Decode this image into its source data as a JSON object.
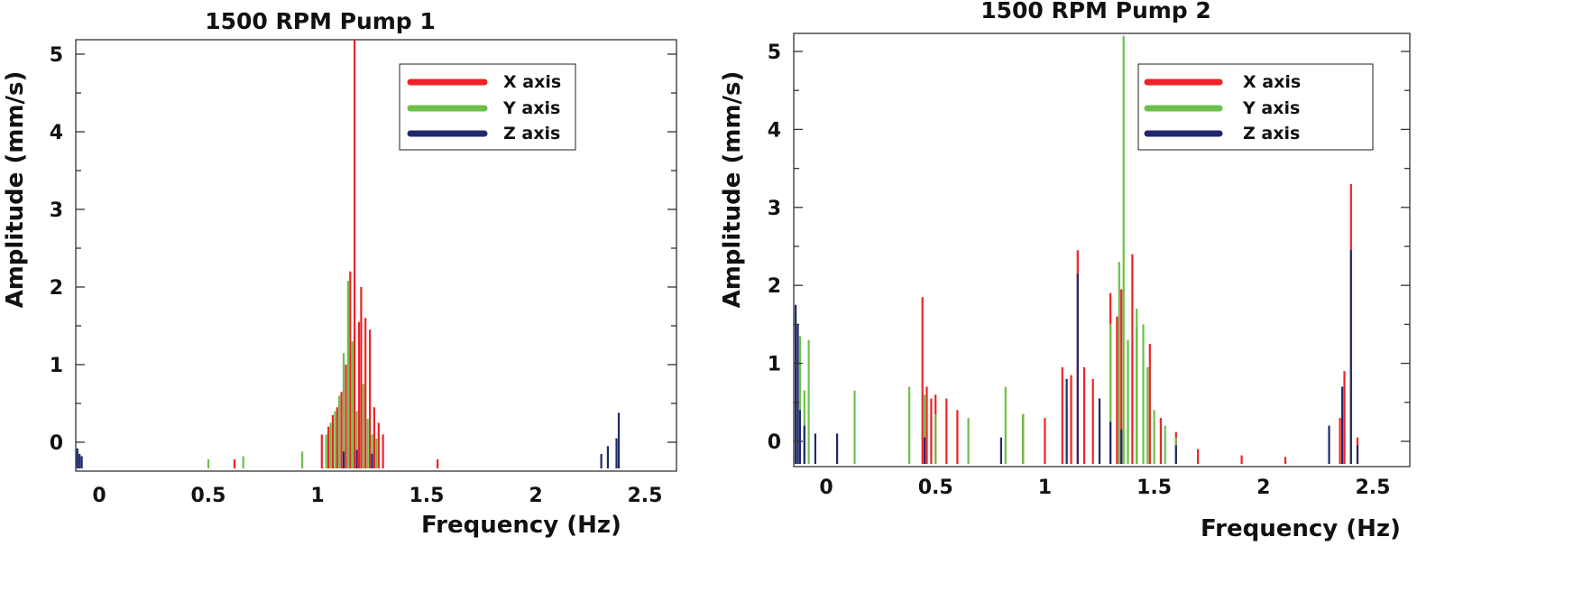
{
  "colors": {
    "x": "#ee2227",
    "y": "#6cc04a",
    "z": "#1f2a6e"
  },
  "chart_data": [
    {
      "type": "bar",
      "title": "1500 RPM Pump 1",
      "xlabel": "Frequency (Hz)",
      "ylabel": "Amplitude (mm/s)",
      "xlim": [
        -0.12,
        2.62
      ],
      "ylim": [
        -0.28,
        5.2
      ],
      "xticks": [
        0,
        0.5,
        1,
        1.5,
        2,
        2.5
      ],
      "xtick_labels": [
        "0",
        "0.5",
        "1",
        "1.5",
        "2",
        "2.5"
      ],
      "yticks": [
        0,
        1,
        2,
        3,
        4,
        5
      ],
      "ytick_labels": [
        "0",
        "1",
        "2",
        "3",
        "4",
        "5"
      ],
      "legend": [
        "X axis",
        "Y axis",
        "Z axis"
      ],
      "legend_position": "top-right",
      "series": [
        {
          "name": "X axis",
          "points": [
            [
              1.02,
              0.1
            ],
            [
              1.05,
              0.2
            ],
            [
              1.07,
              0.35
            ],
            [
              1.09,
              0.45
            ],
            [
              1.11,
              0.65
            ],
            [
              1.13,
              1.0
            ],
            [
              1.15,
              2.2
            ],
            [
              1.17,
              5.2
            ],
            [
              1.19,
              1.55
            ],
            [
              1.2,
              2.0
            ],
            [
              1.22,
              1.6
            ],
            [
              1.24,
              1.45
            ],
            [
              1.26,
              0.45
            ],
            [
              1.28,
              0.25
            ],
            [
              1.3,
              0.1
            ],
            [
              1.55,
              -0.22
            ],
            [
              0.62,
              -0.22
            ]
          ]
        },
        {
          "name": "Y axis",
          "points": [
            [
              1.04,
              0.1
            ],
            [
              1.06,
              0.25
            ],
            [
              1.08,
              0.4
            ],
            [
              1.1,
              0.6
            ],
            [
              1.12,
              1.15
            ],
            [
              1.14,
              2.08
            ],
            [
              1.16,
              1.3
            ],
            [
              1.18,
              0.4
            ],
            [
              1.21,
              0.75
            ],
            [
              1.23,
              0.3
            ],
            [
              1.25,
              0.1
            ],
            [
              1.27,
              0.05
            ],
            [
              0.93,
              -0.12
            ],
            [
              0.66,
              -0.18
            ],
            [
              0.5,
              -0.22
            ]
          ]
        },
        {
          "name": "Z axis",
          "points": [
            [
              -0.1,
              -0.08
            ],
            [
              -0.09,
              -0.15
            ],
            [
              -0.08,
              -0.18
            ],
            [
              1.12,
              -0.12
            ],
            [
              1.18,
              -0.1
            ],
            [
              1.25,
              -0.15
            ],
            [
              2.3,
              -0.15
            ],
            [
              2.33,
              -0.05
            ],
            [
              2.37,
              0.05
            ],
            [
              2.38,
              0.38
            ]
          ]
        }
      ]
    },
    {
      "type": "bar",
      "title": "1500 RPM Pump 2",
      "xlabel": "Frequency (Hz)",
      "ylabel": "Amplitude (mm/s)",
      "xlim": [
        -0.15,
        2.65
      ],
      "ylim": [
        -0.28,
        5.2
      ],
      "xticks": [
        0,
        0.5,
        1,
        1.5,
        2,
        2.5
      ],
      "xtick_labels": [
        "0",
        "0.5",
        "1",
        "1.5",
        "2",
        "2.5"
      ],
      "yticks": [
        0,
        1,
        2,
        3,
        4,
        5
      ],
      "ytick_labels": [
        "0",
        "1",
        "2",
        "3",
        "4",
        "5"
      ],
      "legend": [
        "X axis",
        "Y axis",
        "Z axis"
      ],
      "legend_position": "top-right",
      "series": [
        {
          "name": "X axis",
          "points": [
            [
              0.44,
              1.85
            ],
            [
              0.46,
              0.7
            ],
            [
              0.48,
              0.55
            ],
            [
              0.5,
              0.6
            ],
            [
              0.55,
              0.55
            ],
            [
              0.6,
              0.4
            ],
            [
              0.9,
              0.35
            ],
            [
              1.0,
              0.3
            ],
            [
              1.08,
              0.95
            ],
            [
              1.12,
              0.85
            ],
            [
              1.15,
              2.45
            ],
            [
              1.18,
              0.95
            ],
            [
              1.22,
              0.8
            ],
            [
              1.3,
              1.9
            ],
            [
              1.33,
              1.6
            ],
            [
              1.35,
              1.95
            ],
            [
              1.4,
              2.4
            ],
            [
              1.42,
              1.45
            ],
            [
              1.48,
              1.25
            ],
            [
              1.53,
              0.3
            ],
            [
              1.6,
              0.12
            ],
            [
              1.7,
              -0.1
            ],
            [
              1.9,
              -0.18
            ],
            [
              2.1,
              -0.2
            ],
            [
              2.35,
              0.3
            ],
            [
              2.37,
              0.9
            ],
            [
              2.4,
              3.3
            ],
            [
              2.43,
              0.05
            ]
          ]
        },
        {
          "name": "Y axis",
          "points": [
            [
              -0.12,
              1.35
            ],
            [
              -0.1,
              0.65
            ],
            [
              -0.08,
              1.3
            ],
            [
              0.13,
              0.65
            ],
            [
              0.38,
              0.7
            ],
            [
              0.45,
              0.6
            ],
            [
              0.5,
              0.35
            ],
            [
              0.65,
              0.3
            ],
            [
              0.82,
              0.7
            ],
            [
              0.9,
              0.35
            ],
            [
              1.1,
              0.5
            ],
            [
              1.25,
              0.4
            ],
            [
              1.3,
              1.5
            ],
            [
              1.34,
              2.3
            ],
            [
              1.36,
              5.2
            ],
            [
              1.38,
              1.3
            ],
            [
              1.42,
              1.7
            ],
            [
              1.45,
              1.5
            ],
            [
              1.47,
              0.95
            ],
            [
              1.5,
              0.4
            ],
            [
              1.55,
              0.2
            ],
            [
              1.6,
              0.05
            ]
          ]
        },
        {
          "name": "Z axis",
          "points": [
            [
              -0.14,
              1.75
            ],
            [
              -0.13,
              1.5
            ],
            [
              -0.12,
              0.4
            ],
            [
              -0.1,
              0.2
            ],
            [
              -0.05,
              0.1
            ],
            [
              0.05,
              0.1
            ],
            [
              0.45,
              0.05
            ],
            [
              0.8,
              0.05
            ],
            [
              1.1,
              0.8
            ],
            [
              1.15,
              2.15
            ],
            [
              1.25,
              0.55
            ],
            [
              1.3,
              0.25
            ],
            [
              1.35,
              0.15
            ],
            [
              1.6,
              -0.05
            ],
            [
              2.3,
              0.2
            ],
            [
              2.36,
              0.7
            ],
            [
              2.4,
              2.45
            ],
            [
              2.43,
              -0.05
            ]
          ]
        }
      ]
    }
  ]
}
